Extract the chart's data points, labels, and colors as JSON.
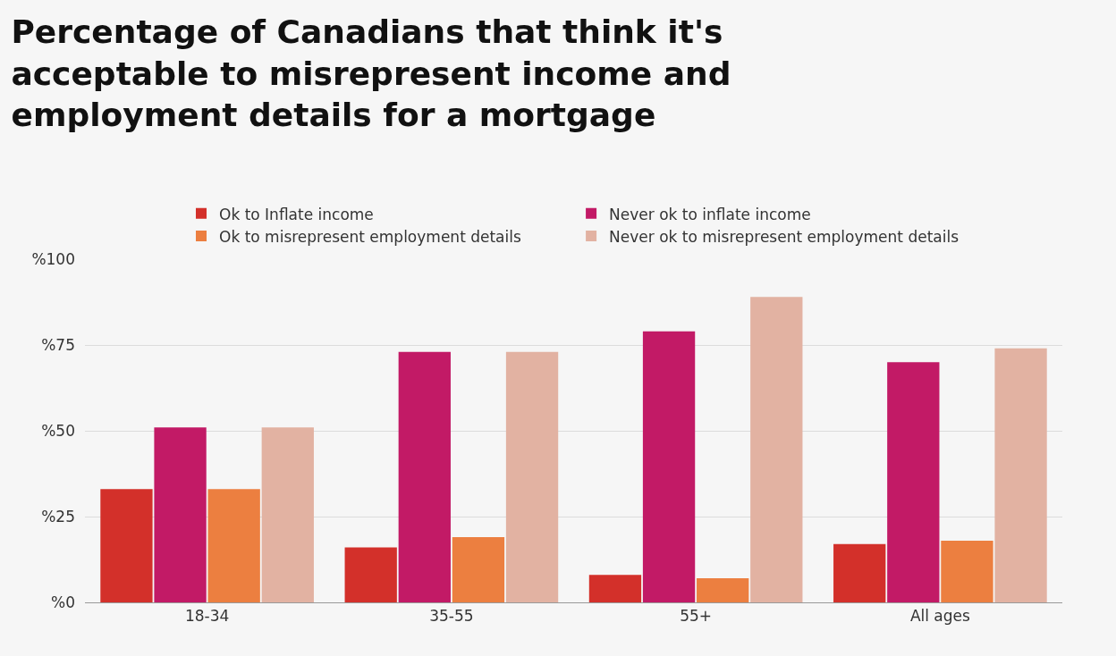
{
  "chart_data": {
    "type": "bar",
    "title": "Percentage of Canadians that think it's acceptable to misrepresent income and employment details for a mortgage",
    "categories": [
      "18-34",
      "35-55",
      "55+",
      "All ages"
    ],
    "series": [
      {
        "name": "Ok to Inflate income",
        "color": "#d3302a",
        "values": [
          33,
          16,
          8,
          17
        ]
      },
      {
        "name": "Never ok to inflate income",
        "color": "#c21a66",
        "values": [
          51,
          73,
          79,
          70
        ]
      },
      {
        "name": "Ok to misrepresent employment details",
        "color": "#ec7f40",
        "values": [
          33,
          19,
          7,
          18
        ]
      },
      {
        "name": "Never ok to misrepresent employment details",
        "color": "#e2b2a2",
        "values": [
          51,
          73,
          89,
          74
        ]
      }
    ],
    "ylim": [
      0,
      100
    ],
    "yticks": [
      {
        "value": 0,
        "label": "%0"
      },
      {
        "value": 25,
        "label": "%25"
      },
      {
        "value": 50,
        "label": "%50"
      },
      {
        "value": 75,
        "label": "%75"
      },
      {
        "value": 100,
        "label": "%100"
      }
    ],
    "grid": "y",
    "legend": "top"
  }
}
